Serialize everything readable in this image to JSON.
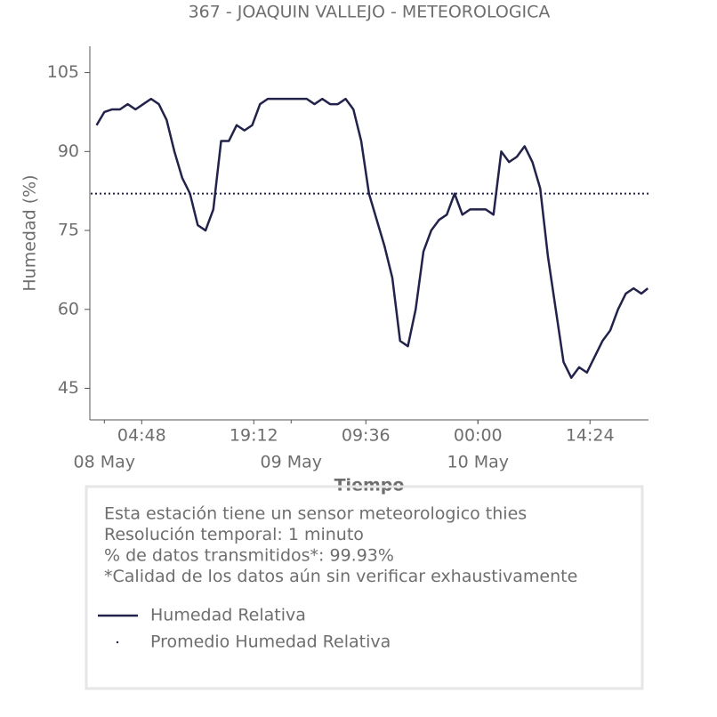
{
  "chart_data": {
    "type": "line",
    "title": "367 - JOAQUIN VALLEJO - METEOROLOGICA",
    "xlabel": "Tiempo",
    "ylabel": "Humedad (%)",
    "x": [
      "07 May 23:00",
      "08 May 00:00",
      "08 May 01:00",
      "08 May 02:00",
      "08 May 03:00",
      "08 May 04:00",
      "08 May 05:00",
      "08 May 06:00",
      "08 May 07:00",
      "08 May 08:00",
      "08 May 09:00",
      "08 May 10:00",
      "08 May 11:00",
      "08 May 12:00",
      "08 May 13:00",
      "08 May 14:00",
      "08 May 15:00",
      "08 May 16:00",
      "08 May 17:00",
      "08 May 18:00",
      "08 May 19:00",
      "08 May 20:00",
      "08 May 21:00",
      "08 May 22:00",
      "08 May 23:00",
      "09 May 00:00",
      "09 May 01:00",
      "09 May 02:00",
      "09 May 03:00",
      "09 May 04:00",
      "09 May 05:00",
      "09 May 06:00",
      "09 May 07:00",
      "09 May 08:00",
      "09 May 09:00",
      "09 May 10:00",
      "09 May 11:00",
      "09 May 12:00",
      "09 May 13:00",
      "09 May 14:00",
      "09 May 15:00",
      "09 May 16:00",
      "09 May 17:00",
      "09 May 18:00",
      "09 May 19:00",
      "09 May 20:00",
      "09 May 21:00",
      "09 May 22:00",
      "09 May 23:00",
      "10 May 00:00",
      "10 May 01:00",
      "10 May 02:00",
      "10 May 03:00",
      "10 May 04:00",
      "10 May 05:00",
      "10 May 06:00",
      "10 May 07:00",
      "10 May 08:00",
      "10 May 09:00",
      "10 May 10:00",
      "10 May 11:00",
      "10 May 12:00",
      "10 May 13:00",
      "10 May 14:00",
      "10 May 15:00",
      "10 May 16:00",
      "10 May 17:00",
      "10 May 18:00",
      "10 May 19:00",
      "10 May 20:00",
      "10 May 21:00",
      "10 May 21:50"
    ],
    "series": [
      {
        "name": "Humedad Relativa",
        "color": "#22224a",
        "values": [
          95,
          97.5,
          98,
          98,
          99,
          98,
          99,
          100,
          99,
          96,
          90,
          85,
          82,
          76,
          75,
          79,
          92,
          92,
          95,
          94,
          95,
          99,
          100,
          100,
          100,
          100,
          100,
          100,
          99,
          100,
          99,
          99,
          100,
          98,
          92,
          82,
          77,
          72,
          66,
          54,
          53,
          60,
          71,
          75,
          77,
          78,
          82,
          78,
          79,
          79,
          79,
          78,
          90,
          88,
          89,
          91,
          88,
          83,
          70,
          60,
          50,
          47,
          49,
          48,
          51,
          54,
          56,
          60,
          63,
          64,
          63,
          64
        ]
      }
    ],
    "hlines": [
      {
        "name": "Promedio Humedad Relativa",
        "color": "#22224a",
        "value": 82
      }
    ],
    "xlim": [
      "07 May 22:15",
      "10 May 21:55"
    ],
    "xticks": [
      {
        "value": "08 May 04:48",
        "label": "04:48"
      },
      {
        "value": "08 May 19:12",
        "label": "19:12"
      },
      {
        "value": "09 May 09:36",
        "label": "09:36"
      },
      {
        "value": "10 May 00:00",
        "label": "00:00"
      },
      {
        "value": "10 May 14:24",
        "label": "14:24"
      }
    ],
    "xticks_dates": [
      {
        "value": "08 May 00:00",
        "label": "08 May"
      },
      {
        "value": "09 May 00:00",
        "label": "09 May"
      },
      {
        "value": "10 May 00:00",
        "label": "10 May"
      }
    ],
    "ylim": [
      39,
      110
    ],
    "yticks": [
      45,
      60,
      75,
      90,
      105
    ],
    "notes": [
      "Esta estación tiene un sensor meteorologico thies",
      "Resolución temporal: 1 minuto",
      "% de datos transmitidos*: 99.93%",
      "*Calidad de los datos aún sin verificar exhaustivamente"
    ]
  }
}
